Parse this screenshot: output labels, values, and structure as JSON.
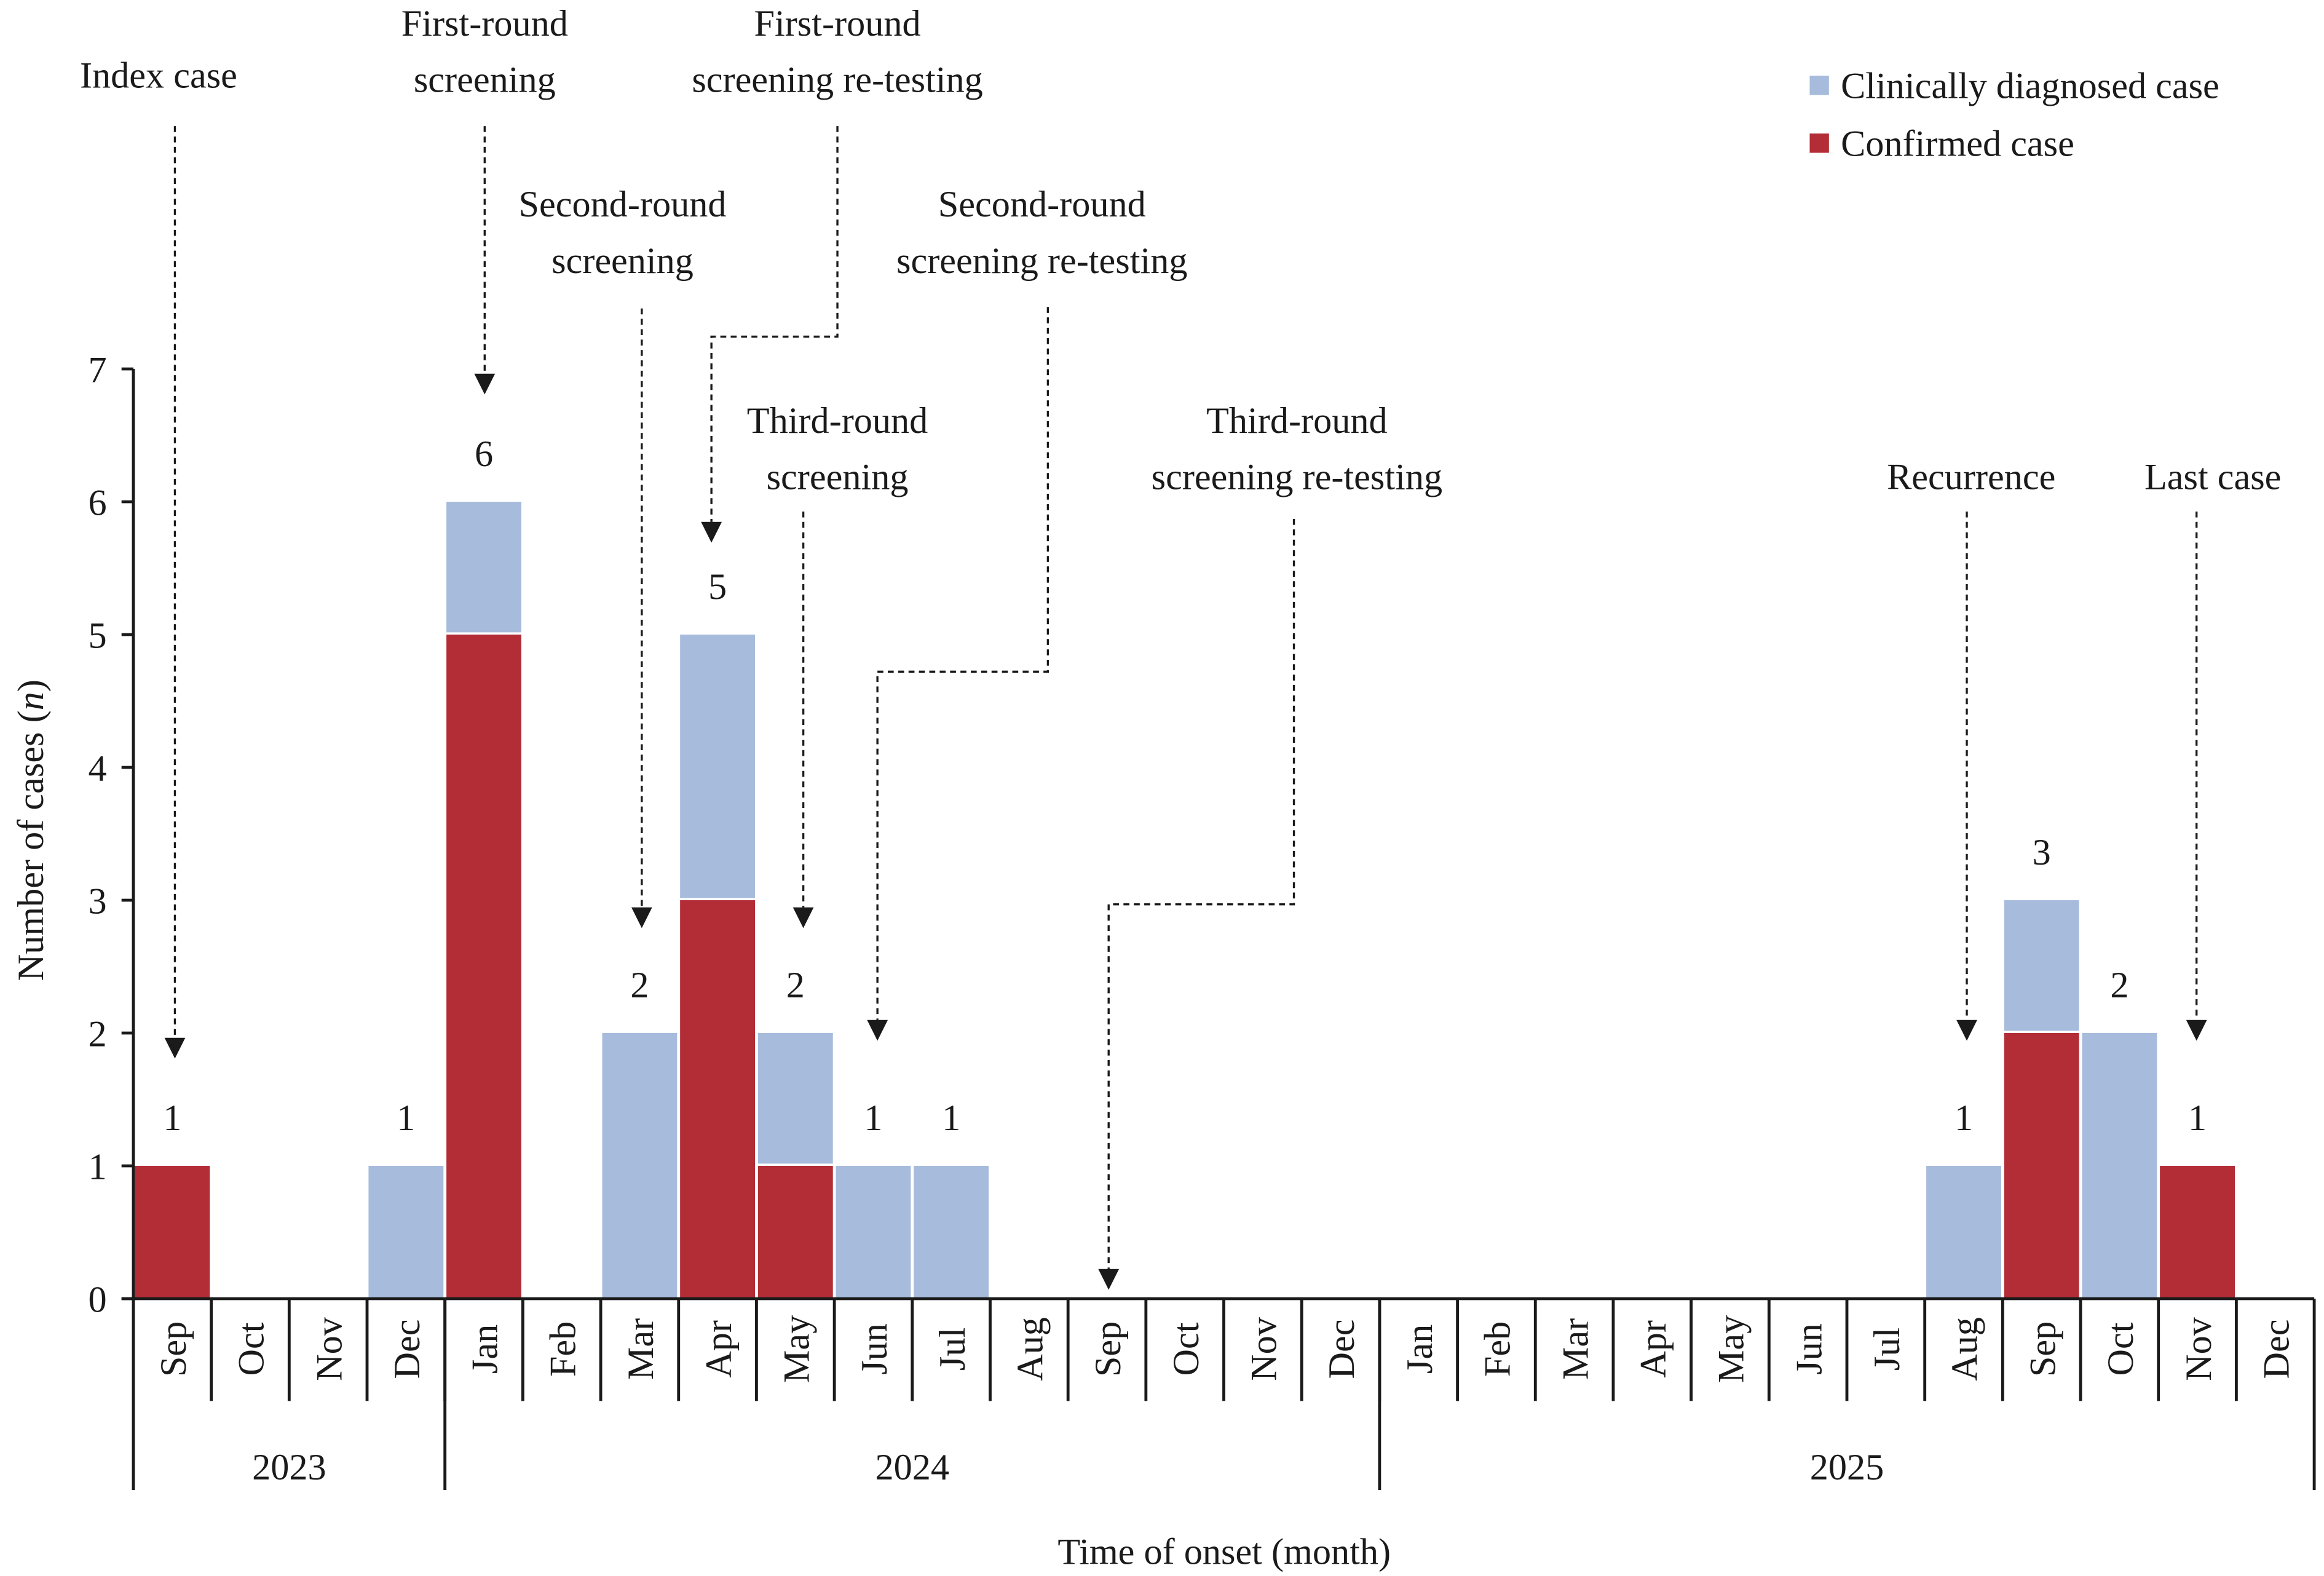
{
  "chart_data": {
    "type": "bar",
    "stacked": true,
    "xlabel": "Time of onset (month)",
    "ylabel": "Number of cases",
    "ylabel_italic_part": "n",
    "ylim": [
      0,
      7
    ],
    "yticks": [
      0,
      1,
      2,
      3,
      4,
      5,
      6,
      7
    ],
    "grid": false,
    "legend_position": "top-right",
    "categories": [
      "Sep",
      "Oct",
      "Nov",
      "Dec",
      "Jan",
      "Feb",
      "Mar",
      "Apr",
      "May",
      "Jun",
      "Jul",
      "Aug",
      "Sep",
      "Oct",
      "Nov",
      "Dec",
      "Jan",
      "Feb",
      "Mar",
      "Apr",
      "May",
      "Jun",
      "Jul",
      "Aug",
      "Sep",
      "Oct",
      "Nov",
      "Dec"
    ],
    "years": [
      {
        "label": "2023",
        "months": 4
      },
      {
        "label": "2024",
        "months": 12
      },
      {
        "label": "2025",
        "months": 12
      }
    ],
    "series": [
      {
        "name": "Confirmed case",
        "color": "#b22d36",
        "values": [
          1,
          0,
          0,
          0,
          5,
          0,
          0,
          3,
          1,
          0,
          0,
          0,
          0,
          0,
          0,
          0,
          0,
          0,
          0,
          0,
          0,
          0,
          0,
          0,
          2,
          0,
          1,
          0
        ]
      },
      {
        "name": "Clinically diagnosed case",
        "color": "#a7bcdc",
        "values": [
          0,
          0,
          0,
          1,
          1,
          0,
          2,
          2,
          1,
          1,
          1,
          0,
          0,
          0,
          0,
          0,
          0,
          0,
          0,
          0,
          0,
          0,
          0,
          1,
          1,
          2,
          0,
          0
        ]
      }
    ],
    "totals": [
      "1",
      "",
      "",
      "1",
      "6",
      "",
      "2",
      "5",
      "2",
      "1",
      "1",
      "",
      "",
      "",
      "",
      "",
      "",
      "",
      "",
      "",
      "",
      "",
      "",
      "1",
      "3",
      "2",
      "1",
      ""
    ],
    "annotations": [
      {
        "lines": [
          "Index case"
        ],
        "month_index": 0
      },
      {
        "lines": [
          "First-round",
          "screening"
        ],
        "month_index": 4
      },
      {
        "lines": [
          "First-round",
          "screening re-testing"
        ],
        "month_index": 7
      },
      {
        "lines": [
          "Second-round",
          "screening"
        ],
        "month_index": 6
      },
      {
        "lines": [
          "Second-round",
          "screening re-testing"
        ],
        "month_index": 9
      },
      {
        "lines": [
          "Third-round",
          "screening"
        ],
        "month_index": 8
      },
      {
        "lines": [
          "Third-round",
          "screening re-testing"
        ],
        "month_index": 12
      },
      {
        "lines": [
          "Recurrence"
        ],
        "month_index": 23
      },
      {
        "lines": [
          "Last case"
        ],
        "month_index": 26
      }
    ]
  }
}
